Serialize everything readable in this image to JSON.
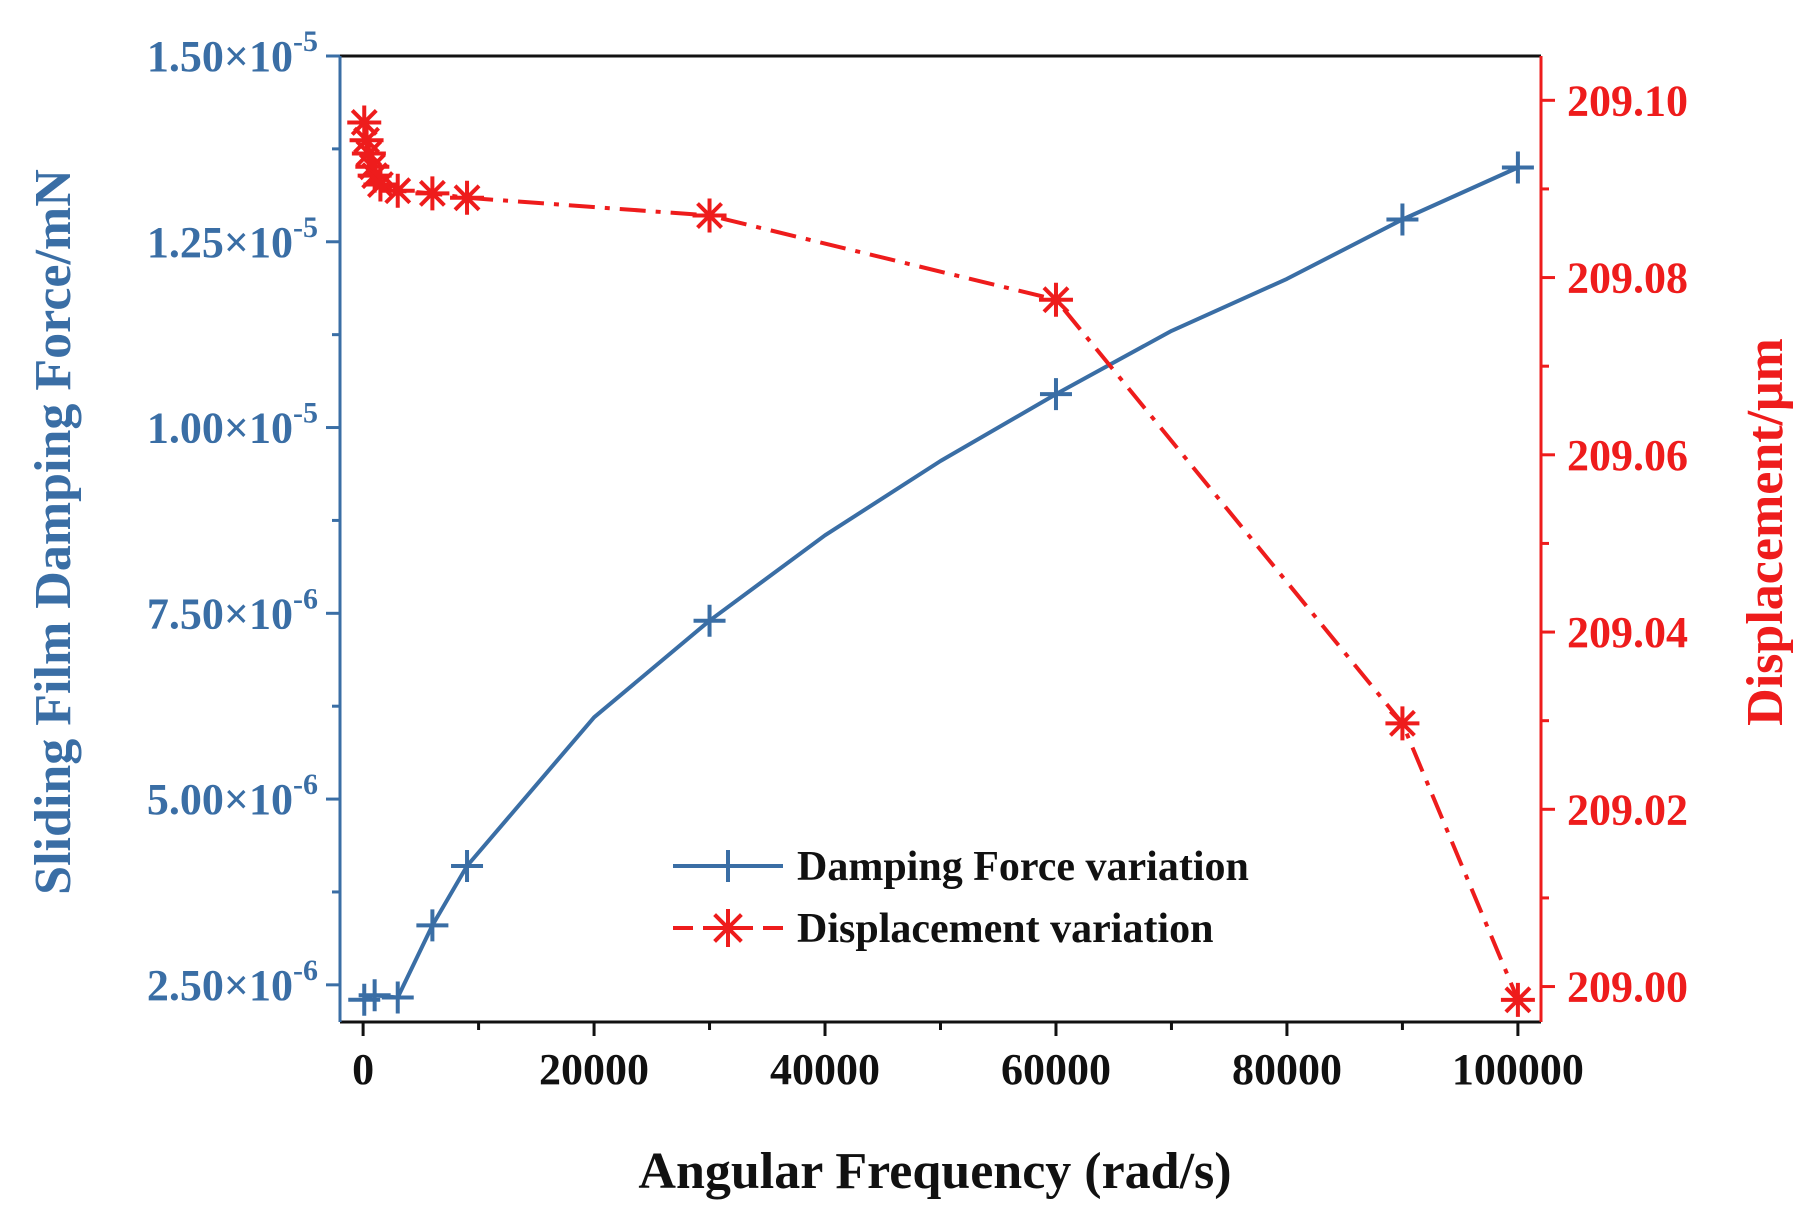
{
  "chart_data": {
    "type": "line",
    "xlabel": "Angular Frequency (rad/s)",
    "ylabel_left": "Sliding Film Damping Force/mN",
    "ylabel_right": "Displacement/μm",
    "xlim": [
      -2000,
      102000
    ],
    "ylim_left": [
      2e-06,
      1.5e-05
    ],
    "ylim_right": [
      208.996,
      209.105
    ],
    "x_ticks": [
      0,
      20000,
      40000,
      60000,
      80000,
      100000
    ],
    "x_tick_labels": [
      "0",
      "20000",
      "40000",
      "60000",
      "80000",
      "100000"
    ],
    "y_left_ticks": [
      {
        "value": 2.5e-06,
        "mant": "2.50×10",
        "exp": "-6"
      },
      {
        "value": 5e-06,
        "mant": "5.00×10",
        "exp": "-6"
      },
      {
        "value": 7.5e-06,
        "mant": "7.50×10",
        "exp": "-6"
      },
      {
        "value": 1e-05,
        "mant": "1.00×10",
        "exp": "-5"
      },
      {
        "value": 1.25e-05,
        "mant": "1.25×10",
        "exp": "-5"
      },
      {
        "value": 1.5e-05,
        "mant": "1.50×10",
        "exp": "-5"
      }
    ],
    "y_right_ticks": [
      209.0,
      209.02,
      209.04,
      209.06,
      209.08,
      209.1
    ],
    "y_right_tick_labels": [
      "209.00",
      "209.02",
      "209.04",
      "209.06",
      "209.08",
      "209.10"
    ],
    "series": [
      {
        "name": "Damping Force variation",
        "axis": "left",
        "color": "#3a6ea5",
        "marker": "plus",
        "line": "solid",
        "x": [
          100,
          500,
          1000,
          3000,
          6000,
          9000,
          20000,
          30000,
          40000,
          50000,
          60000,
          70000,
          80000,
          90000,
          100000
        ],
        "y": [
          2.3e-06,
          2.34e-06,
          2.36e-06,
          2.33e-06,
          3.3e-06,
          4.1e-06,
          6.1e-06,
          7.4e-06,
          8.55e-06,
          9.55e-06,
          1.045e-05,
          1.13e-05,
          1.2e-05,
          1.28e-05,
          1.35e-05
        ],
        "marker_x": [
          100,
          1000,
          3000,
          6000,
          9000,
          30000,
          60000,
          90000,
          100000
        ]
      },
      {
        "name": "Displacement variation",
        "axis": "right",
        "color": "#ee1c1c",
        "marker": "asterisk",
        "line": "dashdot",
        "x": [
          100,
          300,
          500,
          800,
          1000,
          1500,
          3000,
          6000,
          9000,
          30000,
          60000,
          90000,
          100000
        ],
        "y": [
          209.0975,
          209.0955,
          209.094,
          209.0925,
          209.0915,
          209.0905,
          209.0898,
          209.0895,
          209.089,
          209.087,
          209.0775,
          209.0297,
          208.9985
        ]
      }
    ]
  }
}
